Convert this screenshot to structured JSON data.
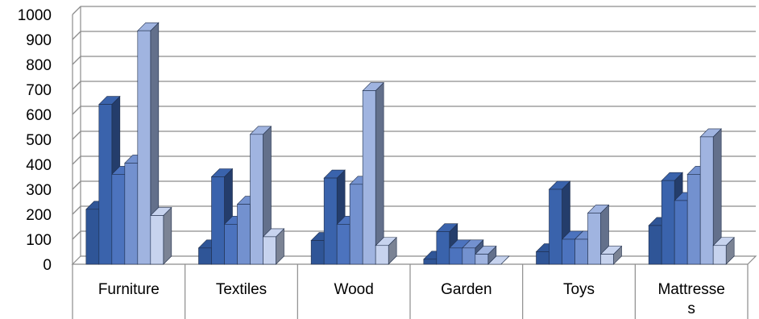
{
  "chart_data": {
    "type": "bar",
    "style": "3d-clustered-column",
    "categories": [
      "Furniture",
      "Textiles",
      "Wood",
      "Garden",
      "Toys",
      "Mattresses"
    ],
    "category_display": [
      [
        "Furniture"
      ],
      [
        "Textiles"
      ],
      [
        "Wood"
      ],
      [
        "Garden"
      ],
      [
        "Toys"
      ],
      [
        "Mattresse",
        "s"
      ]
    ],
    "series": [
      {
        "values": [
          220,
          65,
          95,
          20,
          50,
          155
        ],
        "color": "#2f5597"
      },
      {
        "values": [
          640,
          350,
          345,
          130,
          300,
          335
        ],
        "color": "#3a63ac"
      },
      {
        "values": [
          360,
          160,
          160,
          65,
          100,
          255
        ],
        "color": "#4c73be"
      },
      {
        "values": [
          405,
          240,
          320,
          65,
          100,
          360
        ],
        "color": "#7391cf"
      },
      {
        "values": [
          935,
          520,
          695,
          40,
          205,
          510
        ],
        "color": "#a0b4e0"
      },
      {
        "values": [
          195,
          110,
          75,
          0,
          40,
          75
        ],
        "color": "#c7d3ee"
      }
    ],
    "ylim": [
      0,
      1000
    ],
    "yticks": [
      "0",
      "100",
      "200",
      "300",
      "400",
      "500",
      "600",
      "700",
      "800",
      "900",
      "1000"
    ],
    "grid": true,
    "legend": "none"
  }
}
